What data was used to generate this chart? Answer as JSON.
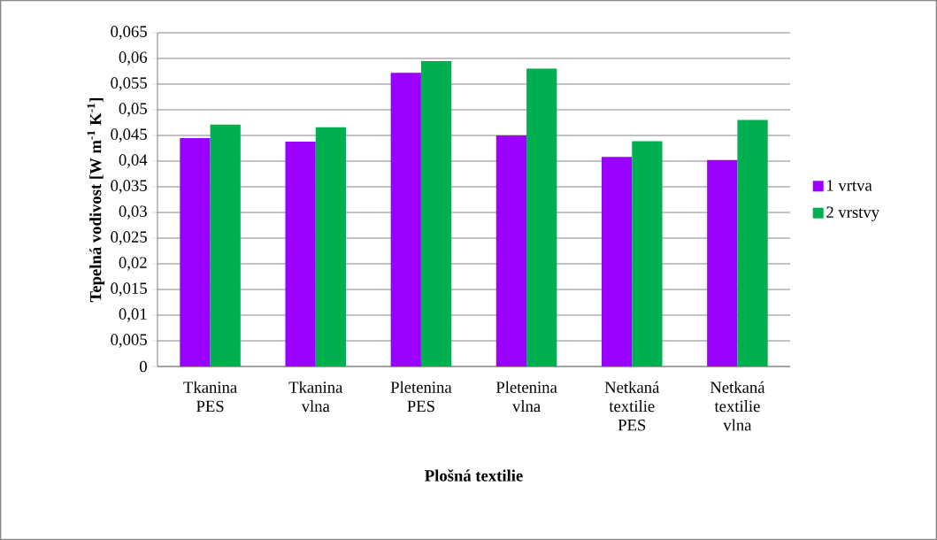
{
  "chart_data": {
    "type": "bar",
    "xlabel": "Plošná textilie",
    "ylabel": "Tepelná vodivost [W m$^{-1}$ K$^{-1}$]",
    "categories": [
      "Tkanina PES",
      "Tkanina vlna",
      "Pletenina PES",
      "Pletenina vlna",
      "Netkaná textilie PES",
      "Netkaná textilie vlna"
    ],
    "series": [
      {
        "name": "1 vrtva",
        "color": "#9900ff",
        "values": [
          0.0445,
          0.0438,
          0.0572,
          0.045,
          0.0408,
          0.0402
        ]
      },
      {
        "name": "2 vrstvy",
        "color": "#00b050",
        "values": [
          0.0471,
          0.0466,
          0.0595,
          0.058,
          0.0439,
          0.048
        ]
      }
    ],
    "ylim": [
      0,
      0.065
    ],
    "yticks": [
      {
        "value": 0,
        "label": "0"
      },
      {
        "value": 0.005,
        "label": "0,005"
      },
      {
        "value": 0.01,
        "label": "0,01"
      },
      {
        "value": 0.015,
        "label": "0,015"
      },
      {
        "value": 0.02,
        "label": "0,02"
      },
      {
        "value": 0.025,
        "label": "0,025"
      },
      {
        "value": 0.03,
        "label": "0,03"
      },
      {
        "value": 0.035,
        "label": "0,035"
      },
      {
        "value": 0.04,
        "label": "0,04"
      },
      {
        "value": 0.045,
        "label": "0,045"
      },
      {
        "value": 0.05,
        "label": "0,05"
      },
      {
        "value": 0.055,
        "label": "0,055"
      },
      {
        "value": 0.06,
        "label": "0,06"
      },
      {
        "value": 0.065,
        "label": "0,065"
      }
    ],
    "grid": "y",
    "legend": "right"
  }
}
